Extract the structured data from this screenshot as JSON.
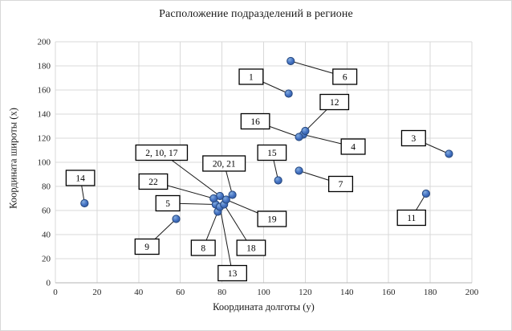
{
  "window": {
    "background": "#ffffff",
    "frame_border": "#d8d8d8"
  },
  "chart_data": {
    "type": "scatter",
    "title": "Расположение подразделений в регионе",
    "xlabel": "Координата долготы (y)",
    "ylabel": "Координата широты (x)",
    "xlim": [
      0,
      200
    ],
    "ylim": [
      0,
      200
    ],
    "xticks": [
      0,
      20,
      40,
      60,
      80,
      100,
      120,
      140,
      160,
      180,
      200
    ],
    "yticks": [
      0,
      20,
      40,
      60,
      80,
      100,
      120,
      140,
      160,
      180,
      200
    ],
    "grid": true,
    "legend": false,
    "gridline_color": "#d9d9d9",
    "axis_line_color": "#b3b3b3",
    "tick_text_color": "#262626",
    "marker_fill": "#4472c4",
    "marker_fill_light": "#85aede",
    "marker_fill_dark": "#31589b",
    "marker_border": "#27497f",
    "callout_fill": "#ffffff",
    "callout_border": "#000000",
    "leader_color": "#1a1a1a",
    "points": [
      {
        "label": "1",
        "x": 112,
        "y": 157,
        "box_x": 94,
        "box_y": 171
      },
      {
        "label": "2, 10, 17",
        "x": 79,
        "y": 72,
        "box_x": 51,
        "box_y": 108
      },
      {
        "label": "3",
        "x": 189,
        "y": 107,
        "box_x": 172,
        "box_y": 120
      },
      {
        "label": "4",
        "x": 119,
        "y": 123,
        "box_x": 143,
        "box_y": 113
      },
      {
        "label": "5",
        "x": 77,
        "y": 65,
        "box_x": 54,
        "box_y": 66
      },
      {
        "label": "6",
        "x": 113,
        "y": 184,
        "box_x": 139,
        "box_y": 171
      },
      {
        "label": "7",
        "x": 117,
        "y": 93,
        "box_x": 137,
        "box_y": 82
      },
      {
        "label": "8",
        "x": 78,
        "y": 59,
        "box_x": 71,
        "box_y": 29
      },
      {
        "label": "9",
        "x": 58,
        "y": 53,
        "box_x": 44,
        "box_y": 30
      },
      {
        "label": "11",
        "x": 178,
        "y": 74,
        "box_x": 171,
        "box_y": 54
      },
      {
        "label": "12",
        "x": 120,
        "y": 126,
        "box_x": 134,
        "box_y": 150
      },
      {
        "label": "13",
        "x": 79,
        "y": 63,
        "box_x": 85,
        "box_y": 8
      },
      {
        "label": "14",
        "x": 14,
        "y": 66,
        "box_x": 12,
        "box_y": 87
      },
      {
        "label": "15",
        "x": 107,
        "y": 85,
        "box_x": 104,
        "box_y": 108
      },
      {
        "label": "16",
        "x": 117,
        "y": 121,
        "box_x": 96,
        "box_y": 134
      },
      {
        "label": "18",
        "x": 81,
        "y": 65,
        "box_x": 94,
        "box_y": 29
      },
      {
        "label": "19",
        "x": 82,
        "y": 69,
        "box_x": 104,
        "box_y": 53
      },
      {
        "label": "20, 21",
        "x": 85,
        "y": 73,
        "box_x": 81,
        "box_y": 99
      },
      {
        "label": "22",
        "x": 76,
        "y": 70,
        "box_x": 47,
        "box_y": 84
      }
    ]
  }
}
